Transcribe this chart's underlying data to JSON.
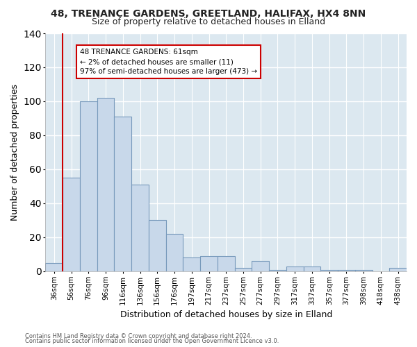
{
  "title1": "48, TRENANCE GARDENS, GREETLAND, HALIFAX, HX4 8NN",
  "title2": "Size of property relative to detached houses in Elland",
  "xlabel": "Distribution of detached houses by size in Elland",
  "ylabel": "Number of detached properties",
  "categories": [
    "36sqm",
    "56sqm",
    "76sqm",
    "96sqm",
    "116sqm",
    "136sqm",
    "156sqm",
    "176sqm",
    "197sqm",
    "217sqm",
    "237sqm",
    "257sqm",
    "277sqm",
    "297sqm",
    "317sqm",
    "337sqm",
    "357sqm",
    "377sqm",
    "398sqm",
    "418sqm",
    "438sqm"
  ],
  "values": [
    5,
    55,
    100,
    102,
    91,
    51,
    30,
    22,
    8,
    9,
    9,
    2,
    6,
    1,
    3,
    3,
    1,
    1,
    1,
    0,
    2
  ],
  "bar_color": "#c8d8ea",
  "bar_edge_color": "#7799bb",
  "plot_bg_color": "#dce8f0",
  "fig_bg_color": "#ffffff",
  "grid_color": "#ffffff",
  "red_line_index": 1,
  "annotation_text": "48 TRENANCE GARDENS: 61sqm\n← 2% of detached houses are smaller (11)\n97% of semi-detached houses are larger (473) →",
  "annotation_box_facecolor": "#ffffff",
  "annotation_box_edgecolor": "#cc0000",
  "ylim": [
    0,
    140
  ],
  "yticks": [
    0,
    20,
    40,
    60,
    80,
    100,
    120,
    140
  ],
  "footer1": "Contains HM Land Registry data © Crown copyright and database right 2024.",
  "footer2": "Contains public sector information licensed under the Open Government Licence v3.0."
}
